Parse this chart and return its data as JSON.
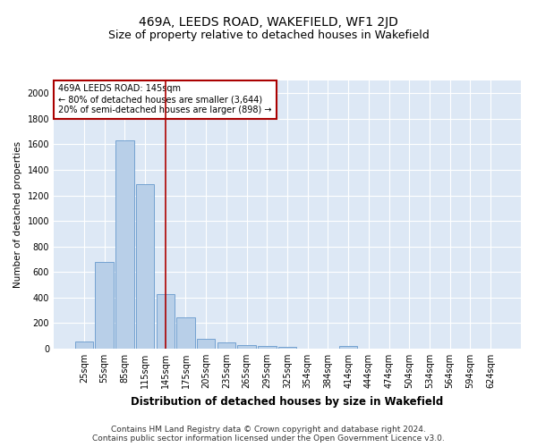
{
  "title": "469A, LEEDS ROAD, WAKEFIELD, WF1 2JD",
  "subtitle": "Size of property relative to detached houses in Wakefield",
  "xlabel": "Distribution of detached houses by size in Wakefield",
  "ylabel": "Number of detached properties",
  "categories": [
    "25sqm",
    "55sqm",
    "85sqm",
    "115sqm",
    "145sqm",
    "175sqm",
    "205sqm",
    "235sqm",
    "265sqm",
    "295sqm",
    "325sqm",
    "354sqm",
    "384sqm",
    "414sqm",
    "444sqm",
    "474sqm",
    "504sqm",
    "534sqm",
    "564sqm",
    "594sqm",
    "624sqm"
  ],
  "values": [
    55,
    680,
    1630,
    1290,
    430,
    248,
    80,
    47,
    25,
    22,
    12,
    0,
    0,
    18,
    0,
    0,
    0,
    0,
    0,
    0,
    0
  ],
  "bar_color": "#b8cfe8",
  "bar_edge_color": "#6699cc",
  "vline_x": 4,
  "vline_color": "#aa0000",
  "annotation_text": "469A LEEDS ROAD: 145sqm\n← 80% of detached houses are smaller (3,644)\n20% of semi-detached houses are larger (898) →",
  "annotation_box_color": "#ffffff",
  "annotation_box_edge": "#aa0000",
  "ylim": [
    0,
    2100
  ],
  "yticks": [
    0,
    200,
    400,
    600,
    800,
    1000,
    1200,
    1400,
    1600,
    1800,
    2000
  ],
  "background_color": "#dde8f5",
  "grid_color": "#ffffff",
  "footer": "Contains HM Land Registry data © Crown copyright and database right 2024.\nContains public sector information licensed under the Open Government Licence v3.0.",
  "title_fontsize": 10,
  "subtitle_fontsize": 9,
  "xlabel_fontsize": 8.5,
  "ylabel_fontsize": 7.5,
  "tick_fontsize": 7,
  "footer_fontsize": 6.5
}
